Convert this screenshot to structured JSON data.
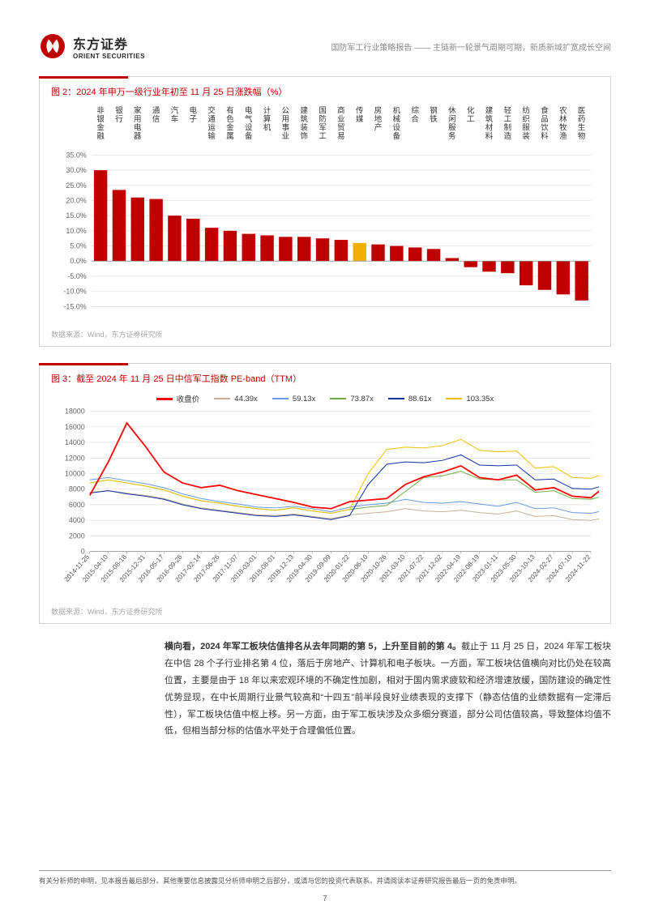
{
  "header": {
    "logo_cn": "东方证券",
    "logo_en": "ORIENT SECURITIES",
    "right_text": "国防军工行业策略报告 —— 主链新一轮景气周期可期，新质新域扩宽成长空间"
  },
  "chart1": {
    "type": "bar",
    "title": "图 2：2024 年申万一级行业年初至 11 月 25 日涨跌幅（%）",
    "source": "数据来源：Wind，东方证券研究所",
    "highlight_color": "#f0b000",
    "bar_color": "#c00000",
    "grid_color": "#d9d9d9",
    "background": "#ffffff",
    "tick_fontsize": 9,
    "cat_fontsize": 9.5,
    "ylim": [
      -15,
      35
    ],
    "ytick_step": 5,
    "highlight_index": 14,
    "categories": [
      "非银金融",
      "银行",
      "家用电器",
      "通信",
      "汽车",
      "电子",
      "交通运输",
      "有色金属",
      "电气设备",
      "计算机",
      "公用事业",
      "建筑装饰",
      "国防军工",
      "商业贸易",
      "传媒",
      "房地产",
      "机械设备",
      "综合",
      "钢铁",
      "休闲服务",
      "化工",
      "建筑材料",
      "轻工制造",
      "纺织服装",
      "食品饮料",
      "农林牧渔",
      "医药生物"
    ],
    "values": [
      30,
      23.5,
      21,
      20.5,
      15,
      14,
      11,
      10,
      9,
      8.5,
      8,
      8,
      7.5,
      7,
      6,
      5.5,
      5,
      4.5,
      4,
      1,
      -2,
      -3.5,
      -4,
      -8,
      -9.5,
      -11,
      -13
    ]
  },
  "chart2": {
    "type": "line",
    "title": "图 3：截至 2024 年 11 月 25 日中信军工指数 PE-band（TTM）",
    "source": "数据来源：Wind，东方证券研究所",
    "background": "#ffffff",
    "grid_color": "#d9d9d9",
    "tick_fontsize": 9,
    "ylim": [
      0,
      18000
    ],
    "ytick_step": 2000,
    "xlabels": [
      "2014-11-25",
      "2015-04-10",
      "2015-08-18",
      "2015-12-31",
      "2016-05-17",
      "2016-09-26",
      "2017-02-14",
      "2017-06-26",
      "2017-11-07",
      "2018-03-01",
      "2018-08-01",
      "2018-12-13",
      "2019-04-30",
      "2019-09-09",
      "2020-01-22",
      "2020-06-10",
      "2020-10-26",
      "2021-03-10",
      "2021-07-22",
      "2021-12-02",
      "2022-04-19",
      "2022-08-19",
      "2023-01-11",
      "2023-05-30",
      "2023-10-13",
      "2024-02-27",
      "2024-07-10",
      "2024-11-22"
    ],
    "legend": [
      {
        "label": "收盘价",
        "color": "#ff0000",
        "thick": true
      },
      {
        "label": "44.39x",
        "color": "#c8b090",
        "thick": false
      },
      {
        "label": "59.13x",
        "color": "#6699e0",
        "thick": false
      },
      {
        "label": "73.87x",
        "color": "#70ad47",
        "thick": false
      },
      {
        "label": "88.61x",
        "color": "#1030a0",
        "thick": false
      },
      {
        "label": "103.35x",
        "color": "#f0c000",
        "thick": false
      }
    ],
    "series": {
      "close": [
        7200,
        11500,
        16500,
        13500,
        10200,
        8800,
        8200,
        8500,
        7800,
        7300,
        6800,
        6300,
        5700,
        5500,
        6400,
        6600,
        6800,
        8600,
        9600,
        10200,
        11000,
        9500,
        9200,
        9800,
        7900,
        8200,
        7100,
        6900,
        8800
      ],
      "b44": [
        7600,
        7800,
        7500,
        7200,
        6800,
        6100,
        5600,
        5300,
        5000,
        4700,
        4600,
        4800,
        4500,
        4200,
        4700,
        4900,
        5100,
        5500,
        5200,
        5100,
        5300,
        5000,
        4800,
        5200,
        4500,
        4600,
        4100,
        4000,
        4400
      ],
      "b59": [
        9200,
        9500,
        9100,
        8700,
        8200,
        7400,
        6800,
        6400,
        6100,
        5700,
        5600,
        5800,
        5500,
        5100,
        5700,
        6000,
        6200,
        6700,
        6300,
        6200,
        6400,
        6100,
        5800,
        6300,
        5500,
        5600,
        5000,
        4900,
        5400
      ],
      "b73": [
        8800,
        9200,
        8800,
        8400,
        7900,
        7100,
        6500,
        6200,
        5800,
        5500,
        5300,
        5600,
        5200,
        4900,
        5400,
        5700,
        5900,
        7700,
        9500,
        9700,
        10300,
        9300,
        9200,
        9200,
        7600,
        7800,
        6800,
        6700,
        7300
      ],
      "b88": [
        7500,
        7800,
        7400,
        7100,
        6700,
        6000,
        5500,
        5200,
        4900,
        4600,
        4500,
        4700,
        4400,
        4100,
        4600,
        8600,
        11200,
        11500,
        11400,
        11700,
        12400,
        11100,
        11000,
        11100,
        9200,
        9300,
        8100,
        8000,
        8700
      ],
      "b103": [
        8800,
        9200,
        8800,
        8400,
        7900,
        7100,
        6500,
        6200,
        5800,
        5500,
        5300,
        5600,
        5200,
        4900,
        5400,
        10000,
        13100,
        13400,
        13300,
        13600,
        14400,
        13000,
        12800,
        12900,
        10700,
        10900,
        9500,
        9400,
        10200
      ]
    }
  },
  "body": {
    "bold1": "横向看，2024 年军工板块估值排名从去年同期的第 5，上升至目前的第 4。",
    "text1": "截止于 11 月 25 日，2024 年军工板块在中信 28 个子行业排名第 4 位，落后于房地产、计算机和电子板块。一方面，军工板块估值横向对比仍处在较高位置，主要是由于 18 年以来宏观环境的不确定性加剧，相对于国内需求疲软和经济增速放缓，国防建设的确定性优势显现，在中长周期行业景气较高和“十四五”前半段良好业绩表现的支撑下（静态估值的业绩数据有一定滞后性），军工板块估值中枢上移。另一方面，由于军工板块涉及众多细分赛道，部分公司估值较高，导致整体均值不低，但相当部分标的估值水平处于合理偏低位置。"
  },
  "footer": {
    "disclaimer": "有关分析师的申明，见本报告最后部分。其他重要信息披露见分析师申明之后部分，或请与您的投资代表联系。并请阅读本证券研究报告最后一页的免责申明。",
    "page": "7"
  }
}
